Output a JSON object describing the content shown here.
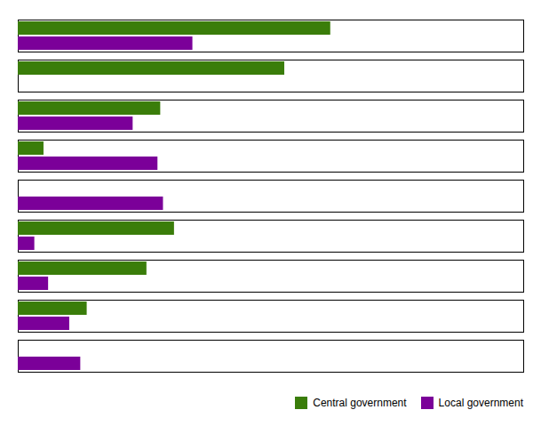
{
  "chart_data": {
    "type": "bar",
    "orientation": "horizontal",
    "categories": [
      null,
      null,
      null,
      null,
      null,
      null,
      null,
      null,
      null
    ],
    "series": [
      {
        "name": "Central government",
        "color": "#3a7d0a",
        "values": [
          3400,
          2900,
          1550,
          280,
          0,
          1700,
          1400,
          750,
          0
        ]
      },
      {
        "name": "Local government",
        "color": "#7b0099",
        "values": [
          1900,
          0,
          1250,
          1520,
          1580,
          180,
          330,
          560,
          680
        ]
      }
    ],
    "xlim": [
      0,
      5500
    ],
    "xticks": [],
    "grid": false,
    "tick_labels": false,
    "legend": "lower right"
  }
}
